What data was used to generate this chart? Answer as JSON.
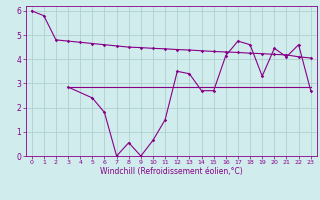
{
  "x": [
    0,
    1,
    2,
    3,
    4,
    5,
    6,
    7,
    8,
    9,
    10,
    11,
    12,
    13,
    14,
    15,
    16,
    17,
    18,
    19,
    20,
    21,
    22,
    23
  ],
  "line1": [
    6.0,
    5.8,
    4.8,
    4.75,
    4.7,
    4.65,
    4.6,
    4.55,
    4.5,
    4.48,
    4.45,
    4.43,
    4.4,
    4.38,
    4.35,
    4.32,
    4.3,
    4.28,
    4.25,
    4.23,
    4.2,
    4.18,
    4.1,
    4.05
  ],
  "line2": [
    null,
    null,
    null,
    2.85,
    null,
    2.4,
    1.8,
    0.0,
    0.55,
    0.0,
    0.65,
    1.5,
    3.5,
    3.4,
    2.7,
    2.7,
    4.15,
    4.75,
    4.6,
    3.3,
    4.45,
    4.1,
    4.6,
    2.7
  ],
  "flat_line_x": [
    3,
    23
  ],
  "flat_line_y": [
    2.85,
    2.85
  ],
  "line_color": "#880088",
  "bg_color": "#d0ecec",
  "grid_color": "#aacccc",
  "xlabel": "Windchill (Refroidissement éolien,°C)",
  "ylim": [
    0,
    6.2
  ],
  "xlim": [
    -0.5,
    23.5
  ],
  "yticks": [
    0,
    1,
    2,
    3,
    4,
    5,
    6
  ],
  "xticks": [
    0,
    1,
    2,
    3,
    4,
    5,
    6,
    7,
    8,
    9,
    10,
    11,
    12,
    13,
    14,
    15,
    16,
    17,
    18,
    19,
    20,
    21,
    22,
    23
  ]
}
